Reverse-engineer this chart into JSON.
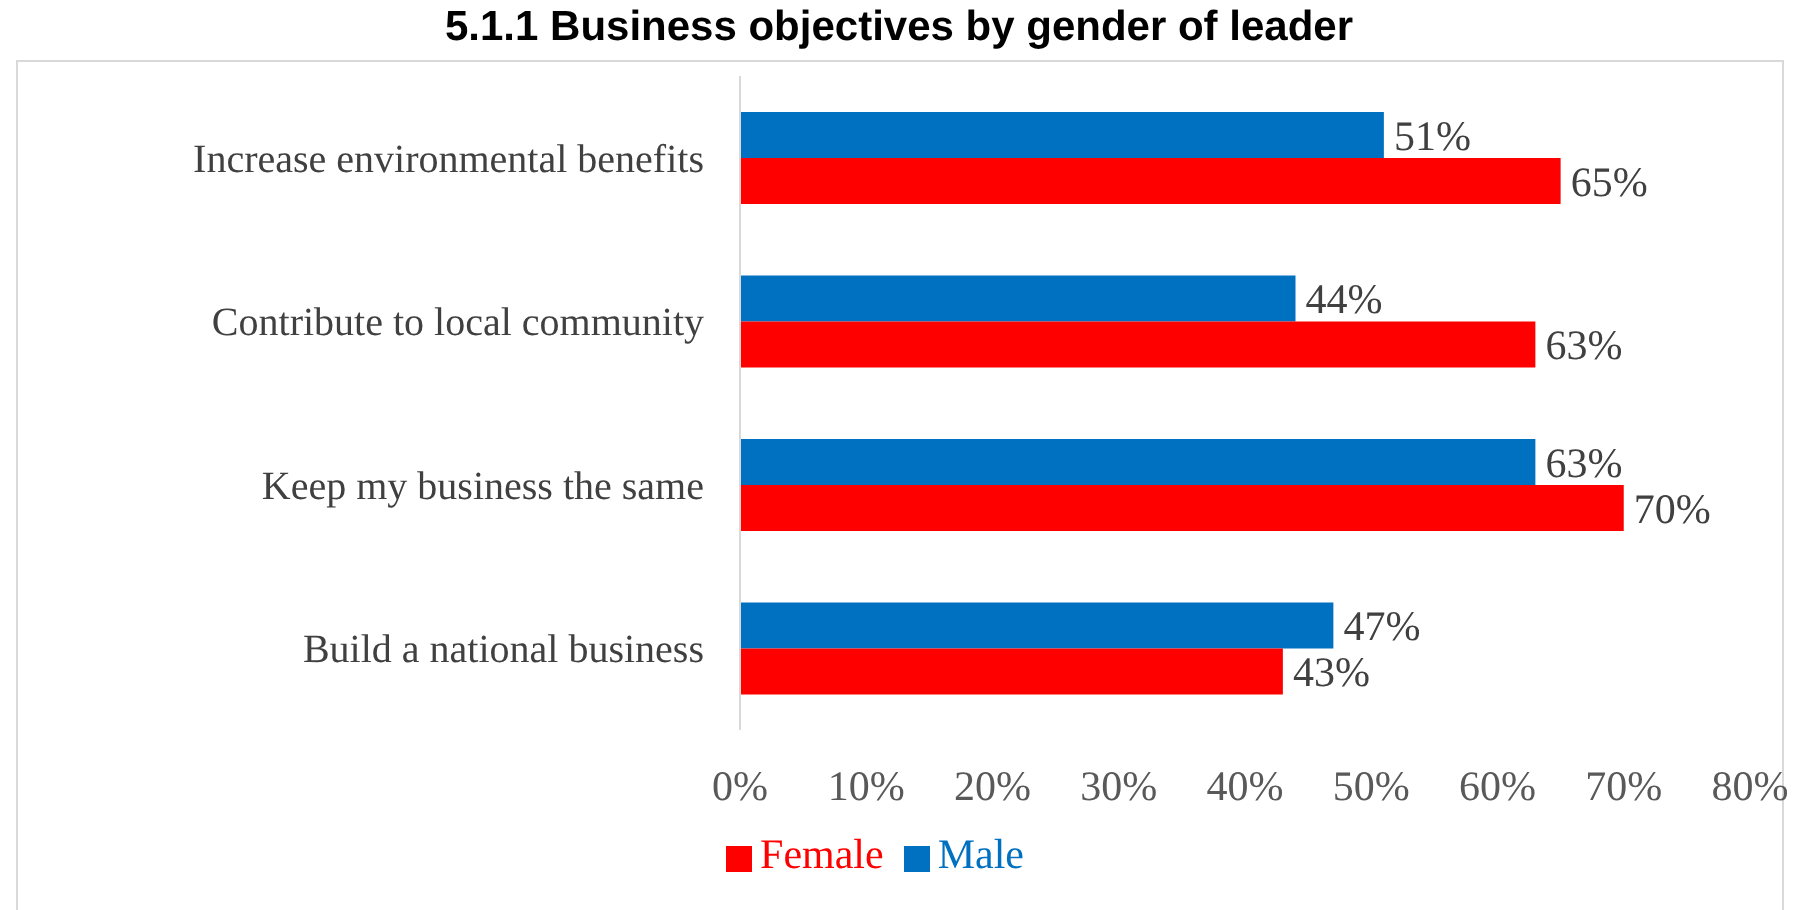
{
  "chart_data": {
    "type": "bar",
    "orientation": "horizontal",
    "title": "5.1.1 Business objectives by gender of leader",
    "categories": [
      "Increase environmental benefits",
      "Contribute to local community",
      "Keep my business the same",
      "Build a national business"
    ],
    "series": [
      {
        "name": "Male",
        "color": "#0070c0",
        "values": [
          51,
          44,
          63,
          47
        ],
        "value_labels": [
          "51%",
          "44%",
          "63%",
          "47%"
        ]
      },
      {
        "name": "Female",
        "color": "#ff0000",
        "values": [
          65,
          63,
          70,
          43
        ],
        "value_labels": [
          "65%",
          "63%",
          "70%",
          "43%"
        ]
      }
    ],
    "xlim": [
      0,
      80
    ],
    "xticks": [
      {
        "value": 0,
        "label": "0%"
      },
      {
        "value": 10,
        "label": "10%"
      },
      {
        "value": 20,
        "label": "20%"
      },
      {
        "value": 30,
        "label": "30%"
      },
      {
        "value": 40,
        "label": "40%"
      },
      {
        "value": 50,
        "label": "50%"
      },
      {
        "value": 60,
        "label": "60%"
      },
      {
        "value": 70,
        "label": "70%"
      },
      {
        "value": 80,
        "label": "80%"
      }
    ],
    "grid": false,
    "legend": "bottom"
  }
}
